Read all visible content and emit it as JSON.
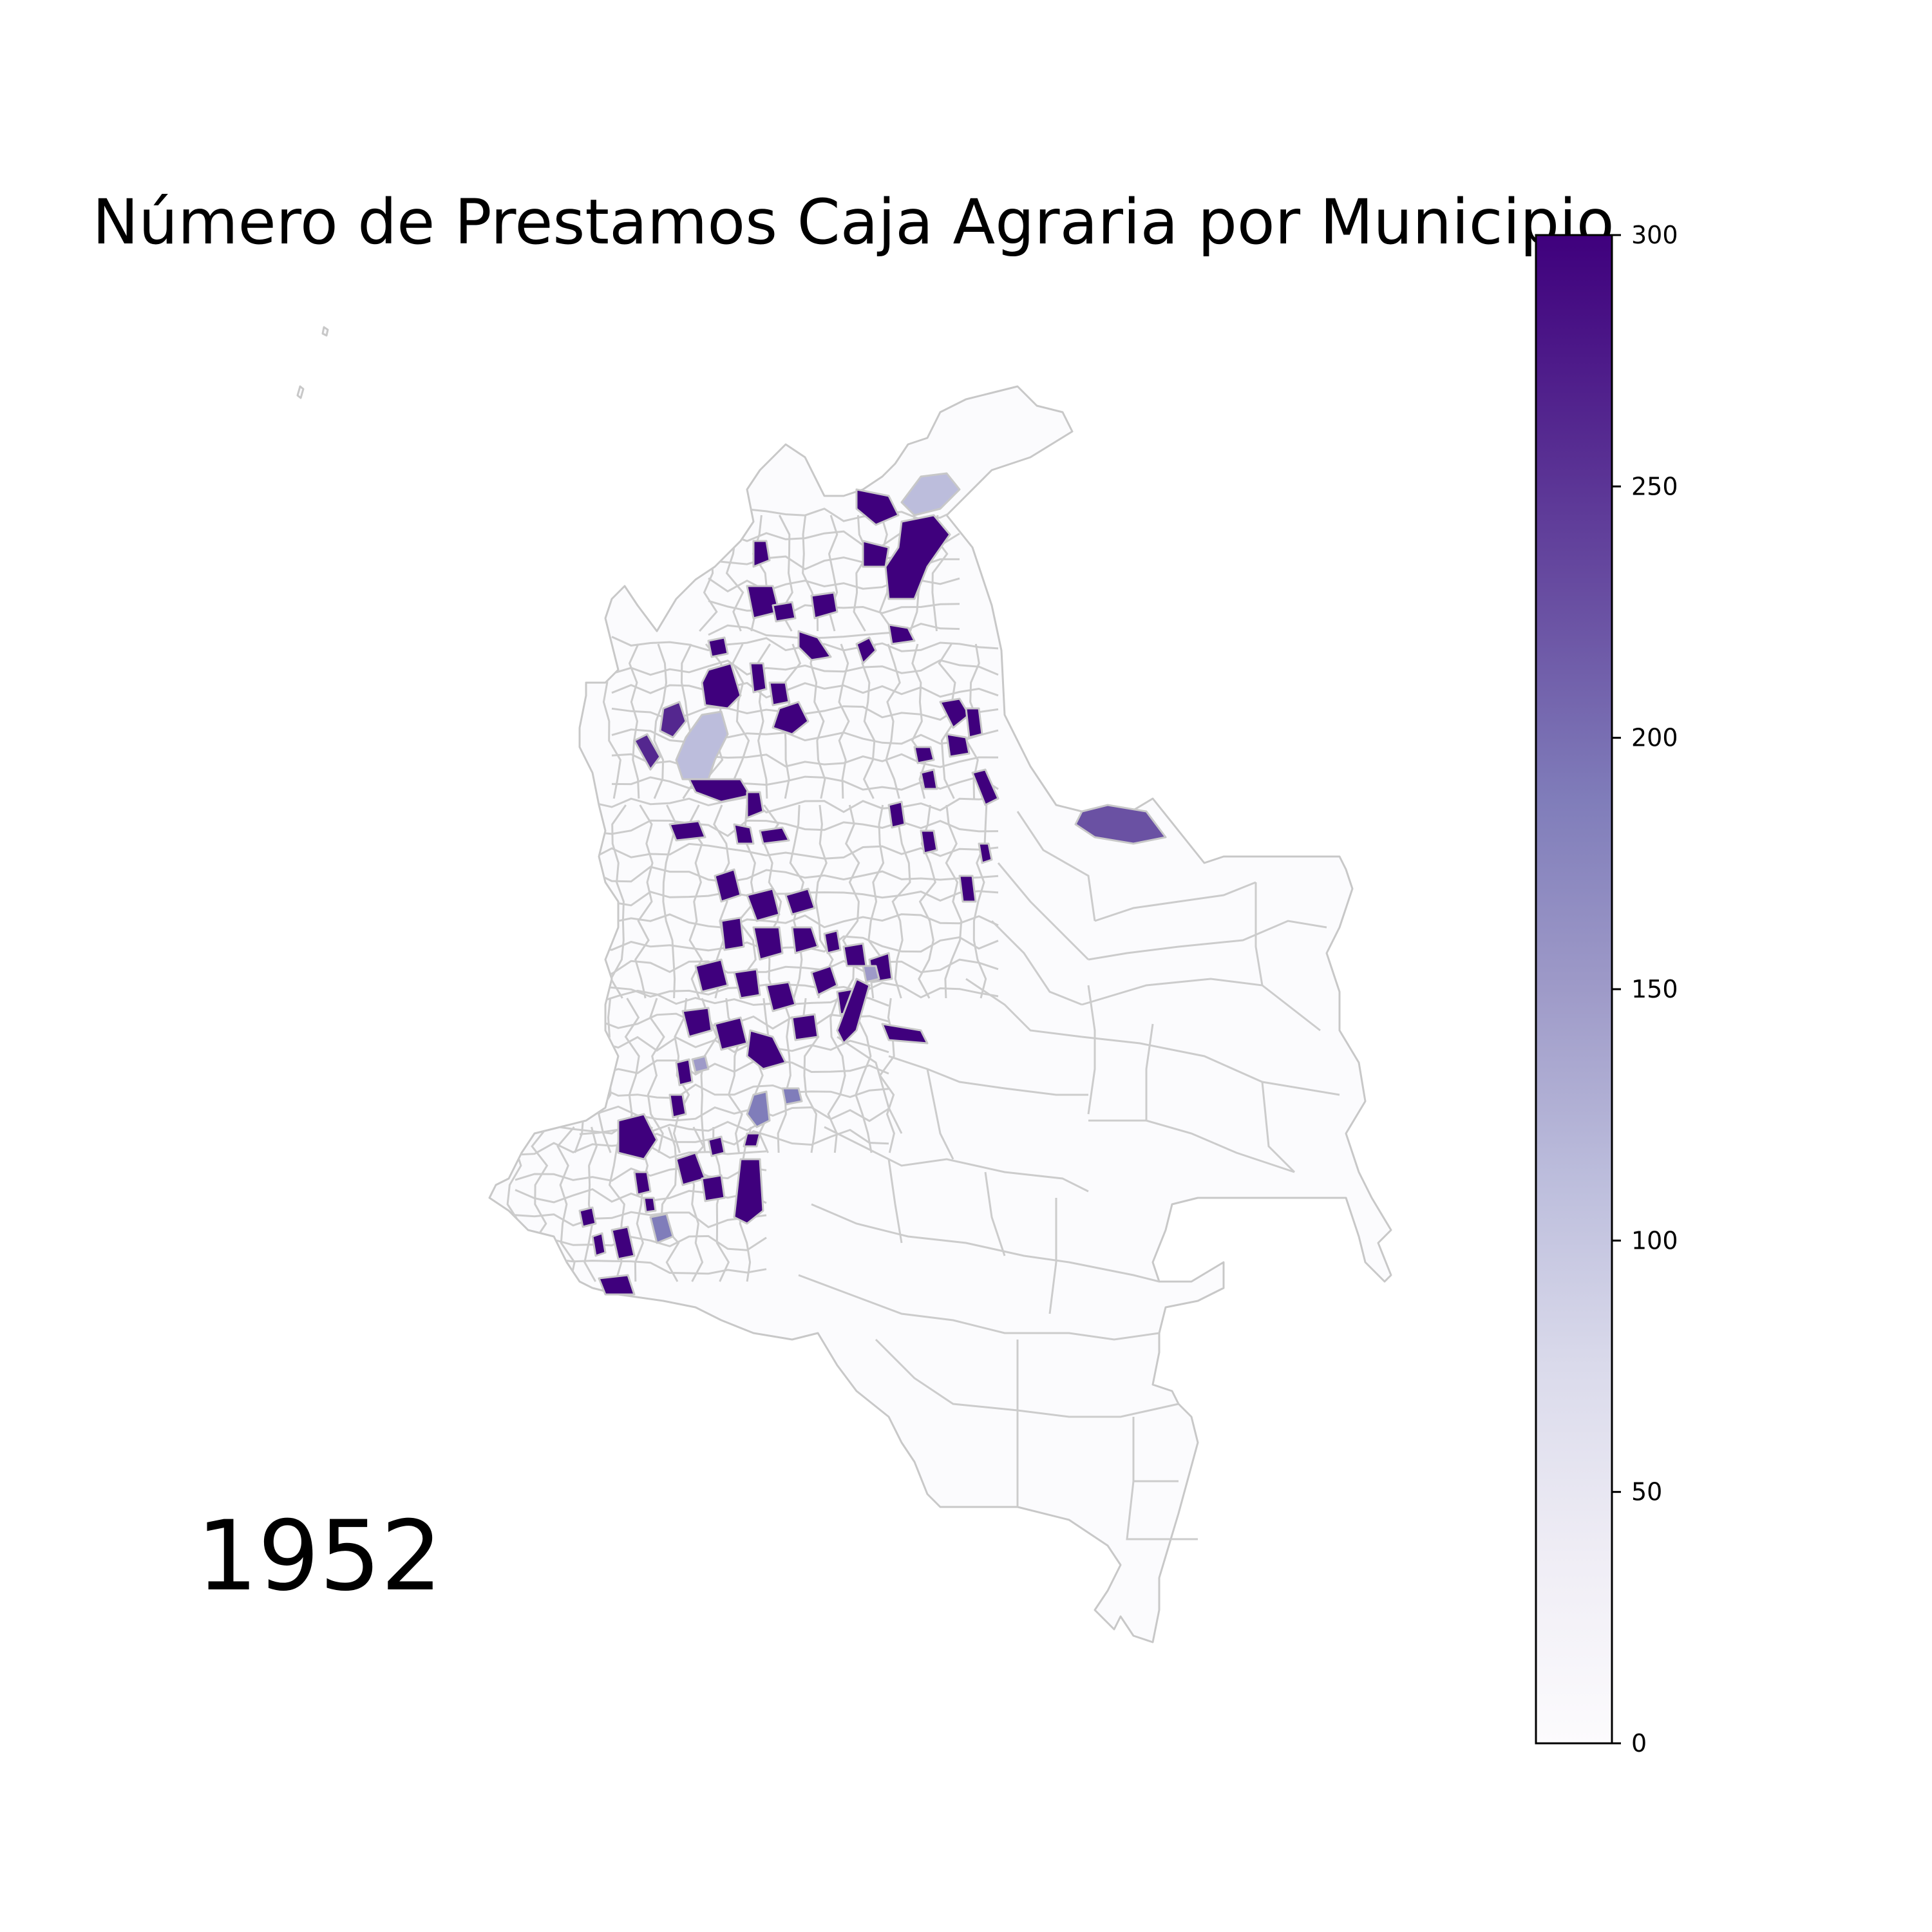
{
  "title": "Número de Prestamos Caja Agraria por Municipio",
  "year_label": "1952",
  "colorbar": {
    "min": 0,
    "max": 300,
    "ticks": [
      0,
      50,
      100,
      150,
      200,
      250,
      300
    ],
    "tick_labels": [
      "0",
      "50",
      "100",
      "150",
      "200",
      "250",
      "300"
    ],
    "colormap": [
      "#fcfbfd",
      "#efedf5",
      "#dadaeb",
      "#bcbddc",
      "#9e9ac8",
      "#807dba",
      "#6a51a3",
      "#54278f",
      "#3f007d"
    ]
  },
  "map": {
    "region": "Colombia municipalities",
    "base_fill": "#fbfbfd",
    "border_color": "#c8c8c8"
  }
}
